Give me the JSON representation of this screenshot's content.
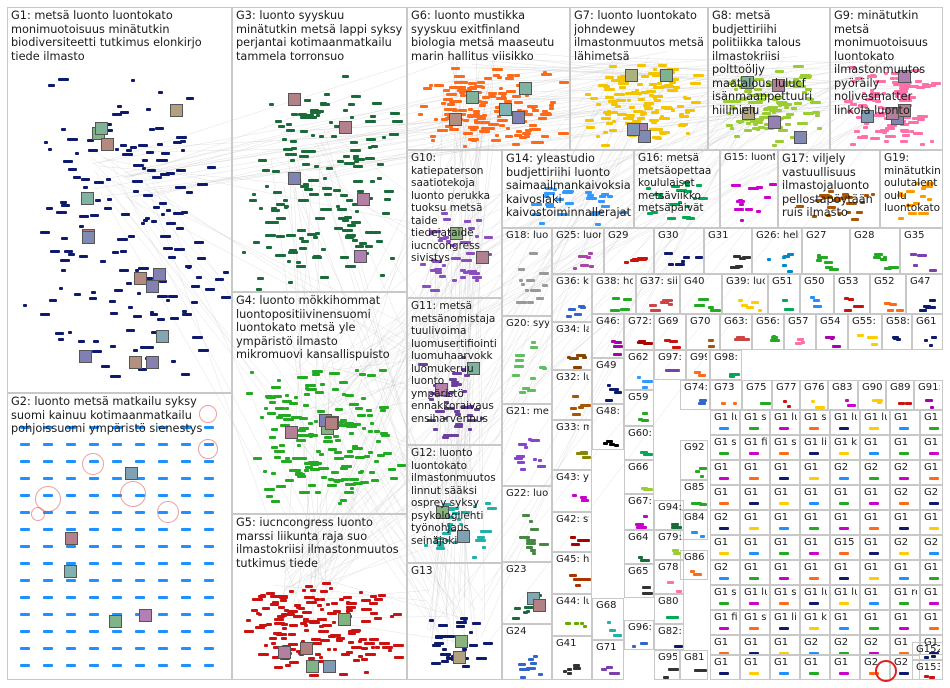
{
  "groups": [
    {
      "id": "G1",
      "label": "G1: metsä luonto luontokato monimuotoisuus minätutkin biodiversiteetti tutkimus elonkirjo tiede ilmasto",
      "color": "#0d1a6e"
    },
    {
      "id": "G2",
      "label": "G2: luonto metsä matkailu syksy suomi kainuu kotimaanmatkailu pohjoissuomi ympäristö sienestys",
      "color": "#1e90ff"
    },
    {
      "id": "G3",
      "label": "G3: luonto syyskuu minätutkin metsä lappi syksy perjantai kotimaanmatkailu tammela torronsuo",
      "color": "#1a6b3a"
    },
    {
      "id": "G4",
      "label": "G4: luonto mökkihommat luontopositiivinensuomi luontokato metsä yle ympäristö ilmasto mikromuovi kansallispuisto",
      "color": "#22aa22"
    },
    {
      "id": "G5",
      "label": "G5: iucncongress luonto marssi liikunta raja suo ilmastokriisi ilmastonmuutos tutkimus tiede",
      "color": "#cc1111"
    },
    {
      "id": "G6",
      "label": "G6: luonto mustikka syyskuu exitfinland biologia metsä maaseutu marin hallitus viisikko",
      "color": "#ff6a1a"
    },
    {
      "id": "G7",
      "label": "G7: luonto luontokato johndewey ilmastonmuutos metsä lähimetsä",
      "color": "#f5c400"
    },
    {
      "id": "G8",
      "label": "G8: metsä budjettiriihi politiikka talous ilmastokriisi polttoöljy maatalous lulucf isänmaanpettuuri hiilinielu",
      "color": "#9acd32"
    },
    {
      "id": "G9",
      "label": "G9: minätutkin metsä monimuotoisuus luontokato ilmastonmuutos pyöräily nolivesmatter linkola luonto",
      "color": "#ff6fa8"
    },
    {
      "id": "G10",
      "label": "G10: katiepaterson saatiotekoja luonto perukka tuoksu metsä taide tiedejataide iucncongress sivistys",
      "color": "#8a4fbf"
    },
    {
      "id": "G11",
      "label": "G11: metsä metsänomistaja tuulivoima luomusertifiointi luomuhaarvokk luomukeruu luonto ympäristö ennakkoraivaus ensiharvennus",
      "color": "#6a3fa0"
    },
    {
      "id": "G12",
      "label": "G12: luonto luontokato ilmastonmuutos linnut sääksi osprey syksy psykologilehti työnohjaus seinäjoki",
      "color": "#20b2aa"
    },
    {
      "id": "G13",
      "label": "G13",
      "color": "#0d1a6e"
    },
    {
      "id": "G14",
      "label": "G14: yleastudio budjettiriihi luonto saimaailmankaivoksia kaivoslaki kaivostoiminnallerajat",
      "color": "#3399ff"
    },
    {
      "id": "G15",
      "label": "G15: luonto kyy saaristo metsä siperianlepinkäinen puu biovarit fotoniikka",
      "color": "#cc00cc"
    },
    {
      "id": "G16",
      "label": "G16: metsä metsäopettaa koululaiset metsäviikko metsäpäivät",
      "color": "#00aa55"
    },
    {
      "id": "G17",
      "label": "G17: viljely vastuullisuus ilmastojaluonto pellostapöytään ruis ilmasto",
      "color": "#aa5500"
    },
    {
      "id": "G18",
      "label": "G18: luonto luontoty reitistöt työ kansallis",
      "color": "#999999"
    },
    {
      "id": "G19",
      "label": "G19: minätutkin oulutalent oulu luontokato",
      "color": "#ff9900"
    },
    {
      "id": "G20",
      "label": "G20: syyskuu maaruska metsä runsasp",
      "color": "#5fbf5f"
    },
    {
      "id": "G21",
      "label": "G21: metsäsu minätutk metsäsu ihmistiet",
      "color": "#8844cc"
    },
    {
      "id": "G22",
      "label": "G22: luonto paikallis jääkäripr reservilä",
      "color": "#448844"
    },
    {
      "id": "G23",
      "label": "G23",
      "color": "#1a6b3a"
    },
    {
      "id": "G24",
      "label": "G24",
      "color": "#3366cc"
    },
    {
      "id": "G25",
      "label": "G25: luonto lähiluont",
      "color": "#aa44aa"
    },
    {
      "id": "G26",
      "label": "G26: helsinki luonto",
      "color": "#0088cc"
    },
    {
      "id": "G27",
      "label": "G27",
      "color": "#22aa22"
    },
    {
      "id": "G28",
      "label": "G28",
      "color": "#22aa22"
    },
    {
      "id": "G29",
      "label": "G29",
      "color": "#cc1111"
    },
    {
      "id": "G30",
      "label": "G30",
      "color": "#0d1a6e"
    },
    {
      "id": "G31",
      "label": "G31",
      "color": "#333333"
    },
    {
      "id": "G32",
      "label": "G32: luonto kirja",
      "color": "#aa5500"
    },
    {
      "id": "G33",
      "label": "G33: metsä sienet",
      "color": "#888800"
    },
    {
      "id": "G34",
      "label": "G34: lappi ylläs",
      "color": "#884400"
    },
    {
      "id": "G35",
      "label": "G35",
      "color": "#7b3fb0"
    },
    {
      "id": "G36",
      "label": "G36: kalast",
      "color": "#3366cc"
    },
    {
      "id": "G37",
      "label": "G37: siili",
      "color": "#cc4444"
    },
    {
      "id": "G38",
      "label": "G38: hossa",
      "color": "#22aa22"
    },
    {
      "id": "G39",
      "label": "G39: luonto",
      "color": "#ffcc00"
    },
    {
      "id": "G40",
      "label": "G40",
      "color": "#22aa22"
    },
    {
      "id": "G41",
      "label": "G41",
      "color": "#333333"
    },
    {
      "id": "G42",
      "label": "G42: storae",
      "color": "#aa0000"
    },
    {
      "id": "G43",
      "label": "G43: yhteis luonto",
      "color": "#cc00cc"
    },
    {
      "id": "G44",
      "label": "G44: luonto",
      "color": "#66aa00"
    },
    {
      "id": "G45",
      "label": "G45: holmö",
      "color": "#aa3300"
    },
    {
      "id": "G46",
      "label": "G46: tieto kirja",
      "color": "#aa00aa"
    },
    {
      "id": "G47",
      "label": "G47",
      "color": "#0d1a6e"
    },
    {
      "id": "G48",
      "label": "G48: met ilm",
      "color": "#000000"
    },
    {
      "id": "G49",
      "label": "G49",
      "color": "#0d1a6e"
    },
    {
      "id": "G50",
      "label": "G50",
      "color": "#1e90ff"
    },
    {
      "id": "G51",
      "label": "G51",
      "color": "#00aa55"
    },
    {
      "id": "G52",
      "label": "G52",
      "color": "#ff6a1a"
    },
    {
      "id": "G53",
      "label": "G53",
      "color": "#cc1111"
    },
    {
      "id": "G54",
      "label": "G54",
      "color": "#aa00aa"
    },
    {
      "id": "G55",
      "label": "G55: met",
      "color": "#ffcc00"
    },
    {
      "id": "G56",
      "label": "G56: luon",
      "color": "#22aa22"
    },
    {
      "id": "G57",
      "label": "G57",
      "color": "#ff6fa8"
    },
    {
      "id": "G58",
      "label": "G58: biot",
      "color": "#0d1a6e"
    },
    {
      "id": "G59",
      "label": "G59",
      "color": "#22aa22"
    },
    {
      "id": "G60",
      "label": "G60: luo",
      "color": "#00aa55"
    },
    {
      "id": "G61",
      "label": "G61",
      "color": "#0d1a6e"
    },
    {
      "id": "G62",
      "label": "G62",
      "color": "#3399ff"
    },
    {
      "id": "G63",
      "label": "G63: nfl",
      "color": "#cc4444"
    },
    {
      "id": "G64",
      "label": "G64",
      "color": "#1a6b3a"
    },
    {
      "id": "G65",
      "label": "G65",
      "color": "#333333"
    },
    {
      "id": "G66",
      "label": "G66",
      "color": "#9acd32"
    },
    {
      "id": "G67",
      "label": "G67: viev",
      "color": "#cc00cc"
    },
    {
      "id": "G68",
      "label": "G68",
      "color": "#20b2aa"
    },
    {
      "id": "G69",
      "label": "G69",
      "color": "#cc1111"
    },
    {
      "id": "G70",
      "label": "G70",
      "color": "#aa5500"
    },
    {
      "id": "G71",
      "label": "G71",
      "color": "#7b3fb0"
    },
    {
      "id": "G72",
      "label": "G72: neu",
      "color": "#aa0000"
    },
    {
      "id": "G73",
      "label": "G73",
      "color": "#ff6a1a"
    },
    {
      "id": "G74",
      "label": "G74: luo",
      "color": "#3366cc"
    },
    {
      "id": "G75",
      "label": "G75",
      "color": "#22aa22"
    },
    {
      "id": "G76",
      "label": "G76",
      "color": "#ffcc00"
    },
    {
      "id": "G77",
      "label": "G77",
      "color": "#cc1111"
    },
    {
      "id": "G78",
      "label": "G78",
      "color": "#ff6fa8"
    },
    {
      "id": "G79",
      "label": "G79: tutk",
      "color": "#9acd32"
    },
    {
      "id": "G80",
      "label": "G80",
      "color": "#00aa55"
    },
    {
      "id": "G81",
      "label": "G81",
      "color": "#333333"
    },
    {
      "id": "G82",
      "label": "G82: poh",
      "color": "#0d1a6e"
    },
    {
      "id": "G83",
      "label": "G83",
      "color": "#cc00cc"
    },
    {
      "id": "G84",
      "label": "G84",
      "color": "#1e90ff"
    },
    {
      "id": "G85",
      "label": "G85",
      "color": "#22aa22"
    },
    {
      "id": "G86",
      "label": "G86",
      "color": "#ff6a1a"
    },
    {
      "id": "G89",
      "label": "G89",
      "color": "#cc1111"
    },
    {
      "id": "G90",
      "label": "G90",
      "color": "#ffcc00"
    },
    {
      "id": "G91",
      "label": "G91: luo",
      "color": "#aa00aa"
    },
    {
      "id": "G92",
      "label": "G92",
      "color": "#22aa22"
    },
    {
      "id": "G94",
      "label": "G94: tääl",
      "color": "#1a6b3a"
    },
    {
      "id": "G95",
      "label": "G95: ura",
      "color": "#333333"
    },
    {
      "id": "G96",
      "label": "G96: kal",
      "color": "#3366cc"
    },
    {
      "id": "G97",
      "label": "G97: suo",
      "color": "#7b3fb0"
    },
    {
      "id": "G98",
      "label": "G98: kes",
      "color": "#00aa55"
    },
    {
      "id": "G99",
      "label": "G99: oul",
      "color": "#ff6a1a"
    },
    {
      "id": "G152",
      "label": "G152",
      "color": "#0d1a6e"
    },
    {
      "id": "G153",
      "label": "G153",
      "color": "#cc1111"
    }
  ],
  "extra_cell_labels": [
    "G1 luo",
    "G1 syk",
    "G1 luo",
    "G1 sät",
    "G1 luo",
    "G1 luo",
    "G1",
    "G1 retk",
    "G1 syntı",
    "G1 finn",
    "G1 sta",
    "G1 lich",
    "G1 kä",
    "G1",
    "G1",
    "G1",
    "G1",
    "G1",
    "G1",
    "G1",
    "G2",
    "G2",
    "G2",
    "G1",
    "G1",
    "G1",
    "G1",
    "G1",
    "G1",
    "G1",
    "G2",
    "G2",
    "G2",
    "G1",
    "G1",
    "G1",
    "G1",
    "G1",
    "G1",
    "G1",
    "G1",
    "G1",
    "G1",
    "G1",
    "G15",
    "G1",
    "G2",
    "G2",
    "G2",
    "G1",
    "G1",
    "G1",
    "G1",
    "G1",
    "G1"
  ]
}
